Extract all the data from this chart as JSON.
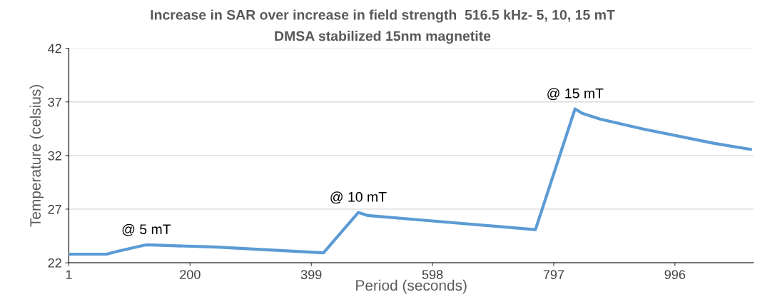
{
  "chart_data": {
    "type": "line",
    "title": "Increase in SAR over increase in field strength  516.5 kHz- 5, 10, 15 mT",
    "subtitle": "DMSA stabilized 15nm magnetite",
    "xlabel": "Period (seconds)",
    "ylabel": "Temperature (celsius)",
    "x": [
      1,
      63,
      81,
      122,
      128,
      239,
      419,
      474,
      476,
      492,
      591,
      767,
      832,
      844,
      873,
      944,
      1061,
      1120
    ],
    "series": [
      {
        "color": "#5b9bd5",
        "values": [
          22.8,
          22.8,
          23.07,
          23.6,
          23.67,
          23.47,
          22.93,
          26.53,
          26.69,
          26.4,
          25.93,
          25.09,
          36.35,
          35.93,
          35.4,
          34.47,
          33.13,
          32.58
        ]
      }
    ],
    "annotations": [
      {
        "text": "@ 5 mT",
        "x": 128,
        "y": 23.67
      },
      {
        "text": "@ 10 mT",
        "x": 476,
        "y": 26.69
      },
      {
        "text": "@ 15 mT",
        "x": 832,
        "y": 36.35
      }
    ],
    "xlim": [
      1,
      1125
    ],
    "xticks": [
      1,
      200,
      399,
      598,
      797,
      996
    ],
    "ylim": [
      22,
      42
    ],
    "yticks": [
      22,
      27,
      32,
      37,
      42
    ],
    "grid": "y",
    "marker": "none",
    "line_style": "solid"
  }
}
